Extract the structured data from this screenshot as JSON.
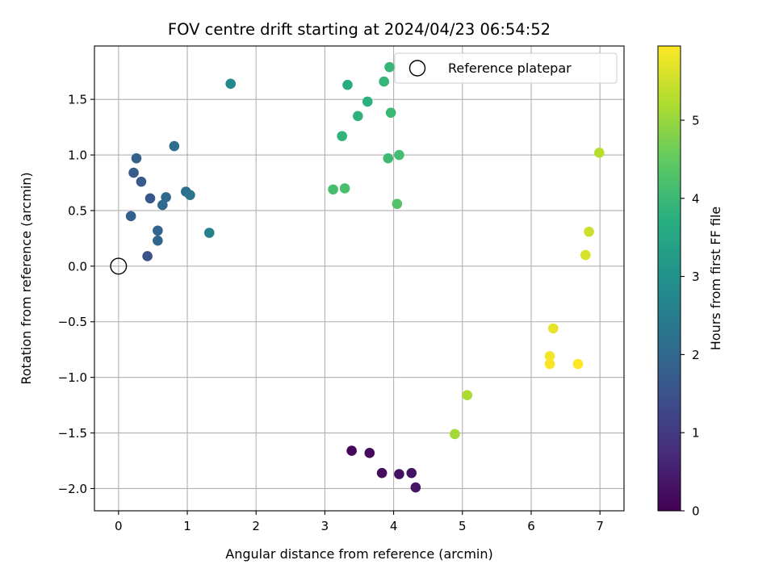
{
  "chart_data": {
    "type": "scatter",
    "title": "FOV centre drift starting at 2024/04/23 06:54:52",
    "xlabel": "Angular distance from reference (arcmin)",
    "ylabel": "Rotation from reference (arcmin)",
    "xlim": [
      -0.35,
      7.35
    ],
    "ylim": [
      -2.2,
      1.98
    ],
    "xticks": [
      0,
      1,
      2,
      3,
      4,
      5,
      6,
      7
    ],
    "xtick_labels": [
      "0",
      "1",
      "2",
      "3",
      "4",
      "5",
      "6",
      "7"
    ],
    "yticks": [
      -2.0,
      -1.5,
      -1.0,
      -0.5,
      0.0,
      0.5,
      1.0,
      1.5
    ],
    "ytick_labels": [
      "−2.0",
      "−1.5",
      "−1.0",
      "−0.5",
      "0.0",
      "0.5",
      "1.0",
      "1.5"
    ],
    "grid": true,
    "legend": {
      "placement": "top-right",
      "entries": [
        "Reference platepar"
      ]
    },
    "reference_point": {
      "x": 0.0,
      "y": 0.0,
      "name": "Reference platepar"
    },
    "colorbar": {
      "label": "Hours from first FF file",
      "colormap": "viridis",
      "range": [
        0,
        5.95
      ],
      "ticks": [
        0,
        1,
        2,
        3,
        4,
        5
      ],
      "tick_labels": [
        "0",
        "1",
        "2",
        "3",
        "4",
        "5"
      ]
    },
    "points": [
      {
        "x": 3.39,
        "y": -1.66,
        "h": 0.1
      },
      {
        "x": 3.65,
        "y": -1.68,
        "h": 0.15
      },
      {
        "x": 3.83,
        "y": -1.86,
        "h": 0.2
      },
      {
        "x": 4.08,
        "y": -1.87,
        "h": 0.25
      },
      {
        "x": 4.26,
        "y": -1.86,
        "h": 0.3
      },
      {
        "x": 4.32,
        "y": -1.99,
        "h": 0.35
      },
      {
        "x": 0.42,
        "y": 0.09,
        "h": 1.5
      },
      {
        "x": 0.46,
        "y": 0.61,
        "h": 1.6
      },
      {
        "x": 0.33,
        "y": 0.76,
        "h": 1.7
      },
      {
        "x": 0.22,
        "y": 0.84,
        "h": 1.75
      },
      {
        "x": 0.18,
        "y": 0.45,
        "h": 1.8
      },
      {
        "x": 0.26,
        "y": 0.97,
        "h": 1.85
      },
      {
        "x": 0.57,
        "y": 0.32,
        "h": 1.9
      },
      {
        "x": 0.57,
        "y": 0.23,
        "h": 1.95
      },
      {
        "x": 0.64,
        "y": 0.55,
        "h": 2.0
      },
      {
        "x": 0.69,
        "y": 0.62,
        "h": 2.05
      },
      {
        "x": 0.81,
        "y": 1.08,
        "h": 2.1
      },
      {
        "x": 0.98,
        "y": 0.67,
        "h": 2.15
      },
      {
        "x": 1.04,
        "y": 0.64,
        "h": 2.25
      },
      {
        "x": 1.32,
        "y": 0.3,
        "h": 2.6
      },
      {
        "x": 1.63,
        "y": 1.64,
        "h": 2.75
      },
      {
        "x": 3.33,
        "y": 1.63,
        "h": 3.7
      },
      {
        "x": 3.62,
        "y": 1.48,
        "h": 3.75
      },
      {
        "x": 3.48,
        "y": 1.35,
        "h": 3.8
      },
      {
        "x": 3.25,
        "y": 1.17,
        "h": 3.85
      },
      {
        "x": 3.86,
        "y": 1.66,
        "h": 3.9
      },
      {
        "x": 3.94,
        "y": 1.79,
        "h": 3.95
      },
      {
        "x": 3.96,
        "y": 1.38,
        "h": 4.0
      },
      {
        "x": 3.92,
        "y": 0.97,
        "h": 4.05
      },
      {
        "x": 4.08,
        "y": 1.0,
        "h": 4.1
      },
      {
        "x": 3.12,
        "y": 0.69,
        "h": 4.15
      },
      {
        "x": 3.29,
        "y": 0.7,
        "h": 4.2
      },
      {
        "x": 4.05,
        "y": 0.56,
        "h": 4.3
      },
      {
        "x": 4.89,
        "y": -1.51,
        "h": 5.1
      },
      {
        "x": 5.07,
        "y": -1.16,
        "h": 5.2
      },
      {
        "x": 6.99,
        "y": 1.02,
        "h": 5.3
      },
      {
        "x": 6.84,
        "y": 0.31,
        "h": 5.5
      },
      {
        "x": 6.79,
        "y": 0.1,
        "h": 5.6
      },
      {
        "x": 6.32,
        "y": -0.56,
        "h": 5.75
      },
      {
        "x": 6.27,
        "y": -0.81,
        "h": 5.85
      },
      {
        "x": 6.27,
        "y": -0.88,
        "h": 5.9
      },
      {
        "x": 6.68,
        "y": -0.88,
        "h": 5.95
      }
    ]
  }
}
